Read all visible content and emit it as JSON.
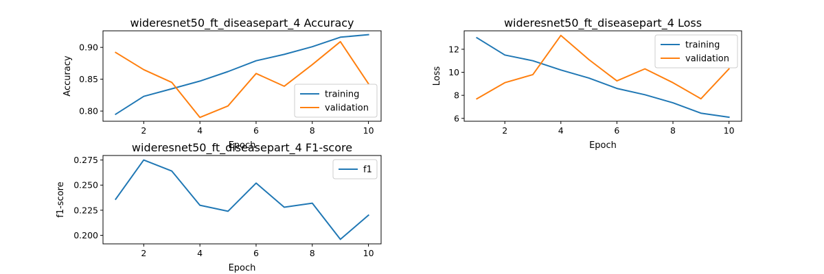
{
  "chart_data": [
    {
      "id": "accuracy",
      "type": "line",
      "title": "wideresnet50_ft_diseasepart_4 Accuracy",
      "xlabel": "Epoch",
      "ylabel": "Accuracy",
      "xlim": [
        0.55,
        10.45
      ],
      "ylim": [
        0.784,
        0.926
      ],
      "xticks": [
        2,
        4,
        6,
        8,
        10
      ],
      "xtick_labels": [
        "2",
        "4",
        "6",
        "8",
        "10"
      ],
      "yticks": [
        0.8,
        0.85,
        0.9
      ],
      "ytick_labels": [
        "0.80",
        "0.85",
        "0.90"
      ],
      "grid": false,
      "legend_position": "lower-right",
      "x": [
        1,
        2,
        3,
        4,
        5,
        6,
        7,
        8,
        9,
        10
      ],
      "series": [
        {
          "name": "training",
          "color": "#1f77b4",
          "values": [
            0.795,
            0.823,
            0.835,
            0.847,
            0.862,
            0.879,
            0.889,
            0.901,
            0.916,
            0.92
          ]
        },
        {
          "name": "validation",
          "color": "#ff7f0e",
          "values": [
            0.892,
            0.865,
            0.845,
            0.79,
            0.808,
            0.859,
            0.839,
            0.873,
            0.909,
            0.843
          ]
        }
      ]
    },
    {
      "id": "loss",
      "type": "line",
      "title": "wideresnet50_ft_diseasepart_4 Loss",
      "xlabel": "Epoch",
      "ylabel": "Loss",
      "xlim": [
        0.55,
        10.45
      ],
      "ylim": [
        5.75,
        13.6
      ],
      "xticks": [
        2,
        4,
        6,
        8,
        10
      ],
      "xtick_labels": [
        "2",
        "4",
        "6",
        "8",
        "10"
      ],
      "yticks": [
        6,
        8,
        10,
        12
      ],
      "ytick_labels": [
        "6",
        "8",
        "10",
        "12"
      ],
      "grid": false,
      "legend_position": "upper-right",
      "x": [
        1,
        2,
        3,
        4,
        5,
        6,
        7,
        8,
        9,
        10
      ],
      "series": [
        {
          "name": "training",
          "color": "#1f77b4",
          "values": [
            13.0,
            11.5,
            11.0,
            10.2,
            9.5,
            8.6,
            8.05,
            7.35,
            6.45,
            6.1
          ]
        },
        {
          "name": "validation",
          "color": "#ff7f0e",
          "values": [
            7.7,
            9.1,
            9.8,
            13.2,
            11.1,
            9.25,
            10.3,
            9.1,
            7.7,
            10.3
          ]
        }
      ]
    },
    {
      "id": "f1",
      "type": "line",
      "title": "wideresnet50_ft_diseasepart_4 F1-score",
      "xlabel": "Epoch",
      "ylabel": "f1-score",
      "xlim": [
        0.55,
        10.45
      ],
      "ylim": [
        0.1915,
        0.2795
      ],
      "xticks": [
        2,
        4,
        6,
        8,
        10
      ],
      "xtick_labels": [
        "2",
        "4",
        "6",
        "8",
        "10"
      ],
      "yticks": [
        0.2,
        0.225,
        0.25,
        0.275
      ],
      "ytick_labels": [
        "0.200",
        "0.225",
        "0.250",
        "0.275"
      ],
      "grid": false,
      "legend_position": "upper-right",
      "x": [
        1,
        2,
        3,
        4,
        5,
        6,
        7,
        8,
        9,
        10
      ],
      "series": [
        {
          "name": "f1",
          "color": "#1f77b4",
          "values": [
            0.236,
            0.275,
            0.264,
            0.23,
            0.224,
            0.252,
            0.228,
            0.232,
            0.196,
            0.22
          ]
        }
      ]
    }
  ]
}
